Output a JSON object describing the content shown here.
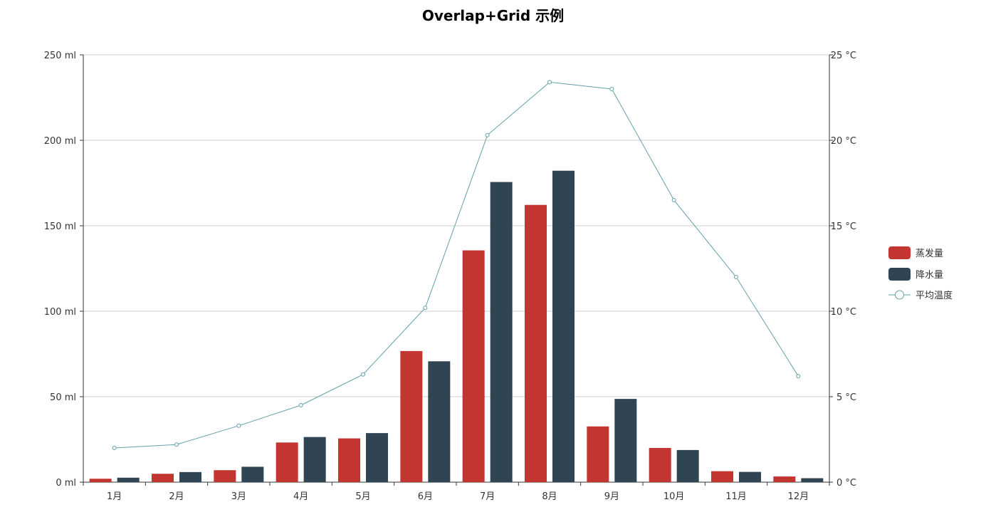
{
  "title": "Overlap+Grid 示例",
  "colors": {
    "evaporation": "#c23531",
    "precipitation": "#2f4554",
    "temperature": "#61a0a8",
    "grid": "#cccccc",
    "axis": "#333333"
  },
  "chart_data": {
    "type": "bar",
    "categories": [
      "1月",
      "2月",
      "3月",
      "4月",
      "5月",
      "6月",
      "7月",
      "8月",
      "9月",
      "10月",
      "11月",
      "12月"
    ],
    "series": [
      {
        "name": "蒸发量",
        "type": "bar",
        "axis": "left",
        "values": [
          2.0,
          4.9,
          7.0,
          23.2,
          25.6,
          76.7,
          135.6,
          162.2,
          32.6,
          20.0,
          6.4,
          3.3
        ]
      },
      {
        "name": "降水量",
        "type": "bar",
        "axis": "left",
        "values": [
          2.6,
          5.9,
          9.0,
          26.4,
          28.7,
          70.7,
          175.6,
          182.2,
          48.7,
          18.8,
          6.0,
          2.3
        ]
      },
      {
        "name": "平均温度",
        "type": "line",
        "axis": "right",
        "values": [
          2.0,
          2.2,
          3.3,
          4.5,
          6.3,
          10.2,
          20.3,
          23.4,
          23.0,
          16.5,
          12.0,
          6.2
        ]
      }
    ],
    "y_left": {
      "ticks": [
        "0 ml",
        "50 ml",
        "100 ml",
        "150 ml",
        "200 ml",
        "250 ml"
      ],
      "range": [
        0,
        250
      ]
    },
    "y_right": {
      "ticks": [
        "0 °C",
        "5 °C",
        "10 °C",
        "15 °C",
        "20 °C",
        "25 °C"
      ],
      "range": [
        0,
        25
      ]
    },
    "grid": true,
    "legend_position": "right"
  }
}
